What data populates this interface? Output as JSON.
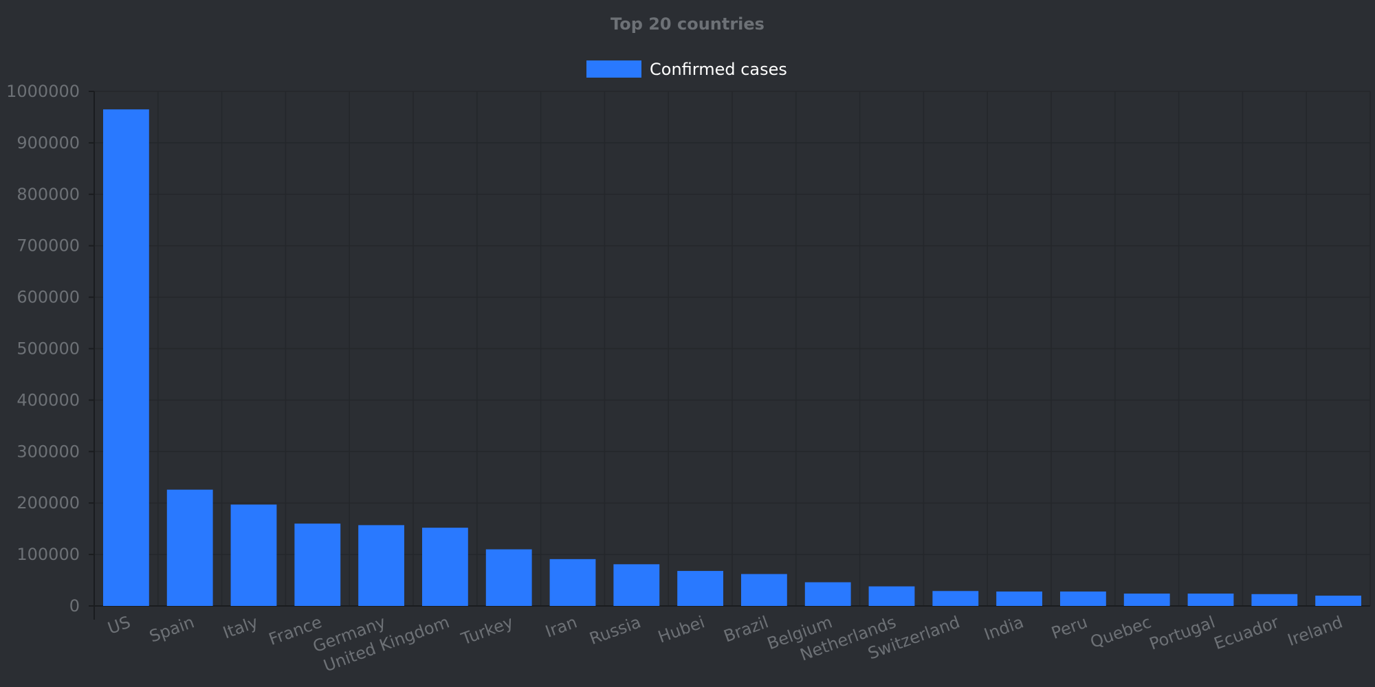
{
  "colors": {
    "background": "#2b2e33",
    "bar": "#2979ff",
    "text_muted": "#6d7176",
    "legend_text": "#ffffff",
    "grid": "#24272b",
    "axis": "#1a1c1f"
  },
  "chart_data": {
    "type": "bar",
    "title": "Top 20 countries",
    "xlabel": "",
    "ylabel": "",
    "ylim": [
      0,
      1000000
    ],
    "yticks": [
      0,
      100000,
      200000,
      300000,
      400000,
      500000,
      600000,
      700000,
      800000,
      900000,
      1000000
    ],
    "ytick_labels": [
      "0",
      "100000",
      "200000",
      "300000",
      "400000",
      "500000",
      "600000",
      "700000",
      "800000",
      "900000",
      "1000000"
    ],
    "grid": true,
    "legend_position": "top-center",
    "categories": [
      "US",
      "Spain",
      "Italy",
      "France",
      "Germany",
      "United Kingdom",
      "Turkey",
      "Iran",
      "Russia",
      "Hubei",
      "Brazil",
      "Belgium",
      "Netherlands",
      "Switzerland",
      "India",
      "Peru",
      "Quebec",
      "Portugal",
      "Ecuador",
      "Ireland"
    ],
    "series": [
      {
        "name": "Confirmed cases",
        "color": "#2979ff",
        "values": [
          965000,
          226000,
          197000,
          160000,
          157000,
          152000,
          110000,
          91000,
          81000,
          68000,
          62000,
          46000,
          38000,
          29000,
          28000,
          28000,
          24000,
          24000,
          23000,
          20000
        ]
      }
    ]
  }
}
